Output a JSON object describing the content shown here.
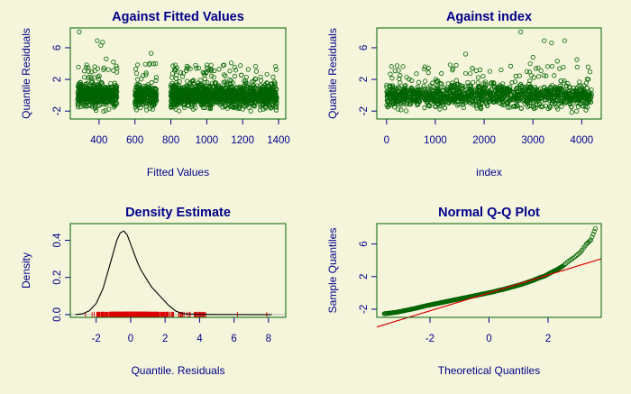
{
  "chart_data": [
    {
      "type": "scatter",
      "title": "Against Fitted Values",
      "xlabel": "Fitted Values",
      "ylabel": "Quantile Residuals",
      "xlim": [
        240,
        1440
      ],
      "ylim": [
        -3,
        8.5
      ],
      "xticks": [
        "400",
        "600",
        "800",
        "1000",
        "1200",
        "1400"
      ],
      "yticks": [
        "-2",
        "2",
        "6"
      ],
      "point_color": "#006400",
      "clusters": [
        [
          280,
          500
        ],
        [
          600,
          720
        ],
        [
          800,
          1280
        ],
        [
          1290,
          1390
        ]
      ],
      "outliers": [
        {
          "x": 290,
          "y": 8.0
        },
        {
          "x": 390,
          "y": 6.9
        },
        {
          "x": 410,
          "y": 6.3
        },
        {
          "x": 420,
          "y": 6.7
        },
        {
          "x": 690,
          "y": 5.3
        },
        {
          "x": 440,
          "y": 4.6
        },
        {
          "x": 480,
          "y": 4.2
        }
      ]
    },
    {
      "type": "scatter",
      "title": "Against  index",
      "xlabel": "index",
      "ylabel": "Quantile Residuals",
      "xlim": [
        -200,
        4400
      ],
      "ylim": [
        -3,
        8.5
      ],
      "xticks": [
        "0",
        "1000",
        "2000",
        "3000",
        "4000"
      ],
      "yticks": [
        "-2",
        "2",
        "6"
      ],
      "point_color": "#006400",
      "n_points": 4200,
      "outliers": [
        {
          "x": 2750,
          "y": 8.0
        },
        {
          "x": 3230,
          "y": 6.9
        },
        {
          "x": 3380,
          "y": 6.6
        },
        {
          "x": 3650,
          "y": 6.9
        },
        {
          "x": 1620,
          "y": 5.2
        },
        {
          "x": 3000,
          "y": 4.8
        },
        {
          "x": 3900,
          "y": 4.5
        },
        {
          "x": 3500,
          "y": 4.3
        }
      ]
    },
    {
      "type": "line",
      "title": "Density Estimate",
      "xlabel": "Quantile. Residuals",
      "ylabel": "Density",
      "xlim": [
        -3.5,
        9
      ],
      "ylim": [
        -0.015,
        0.49
      ],
      "xticks": [
        "-2",
        "0",
        "2",
        "4",
        "6",
        "8"
      ],
      "yticks": [
        "0.0",
        "0.2",
        "0.4"
      ],
      "line_color": "#000000",
      "rug_color": "#dd0000",
      "density": {
        "x": [
          -3.2,
          -2.8,
          -2.4,
          -2.0,
          -1.6,
          -1.2,
          -0.8,
          -0.6,
          -0.4,
          -0.2,
          0.0,
          0.2,
          0.4,
          0.6,
          0.8,
          1.0,
          1.2,
          1.4,
          1.6,
          1.8,
          2.0,
          2.2,
          2.4,
          2.6,
          2.8,
          3.0,
          3.4,
          3.8,
          4.4,
          5.0,
          6.0,
          7.0,
          8.2
        ],
        "y": [
          0.0,
          0.004,
          0.02,
          0.06,
          0.14,
          0.27,
          0.4,
          0.44,
          0.45,
          0.43,
          0.38,
          0.33,
          0.28,
          0.24,
          0.21,
          0.18,
          0.15,
          0.13,
          0.11,
          0.09,
          0.07,
          0.05,
          0.035,
          0.02,
          0.012,
          0.006,
          0.003,
          0.002,
          0.001,
          0.0006,
          0.0003,
          0.0002,
          0.0
        ]
      },
      "rug_range": [
        -3.5,
        8.0
      ]
    },
    {
      "type": "scatter",
      "title": "Normal Q-Q Plot",
      "xlabel": "Theoretical Quantiles",
      "ylabel": "Sample Quantiles",
      "xlim": [
        -3.8,
        3.8
      ],
      "ylim": [
        -3,
        8.5
      ],
      "xticks": [
        "-2",
        "0",
        "2"
      ],
      "yticks": [
        "-2",
        "2",
        "6"
      ],
      "point_color": "#006400",
      "line_color": "#dd0000",
      "qq_line": {
        "intercept": 0.0,
        "slope": 1.1
      },
      "qq_points": [
        [
          -3.55,
          -2.55
        ],
        [
          -3.3,
          -2.45
        ],
        [
          -3.1,
          -2.35
        ],
        [
          -2.9,
          -2.2
        ],
        [
          -2.7,
          -2.05
        ],
        [
          -2.5,
          -1.9
        ],
        [
          -2.3,
          -1.72
        ],
        [
          -2.1,
          -1.55
        ],
        [
          -1.9,
          -1.4
        ],
        [
          -1.7,
          -1.25
        ],
        [
          -1.5,
          -1.1
        ],
        [
          -1.3,
          -0.95
        ],
        [
          -1.1,
          -0.8
        ],
        [
          -0.9,
          -0.65
        ],
        [
          -0.7,
          -0.5
        ],
        [
          -0.5,
          -0.35
        ],
        [
          -0.3,
          -0.2
        ],
        [
          -0.1,
          -0.05
        ],
        [
          0.1,
          0.1
        ],
        [
          0.3,
          0.28
        ],
        [
          0.5,
          0.45
        ],
        [
          0.7,
          0.65
        ],
        [
          0.9,
          0.85
        ],
        [
          1.1,
          1.05
        ],
        [
          1.3,
          1.3
        ],
        [
          1.5,
          1.55
        ],
        [
          1.7,
          1.85
        ],
        [
          1.9,
          2.1
        ],
        [
          2.1,
          2.5
        ],
        [
          2.3,
          2.85
        ],
        [
          2.5,
          3.3
        ],
        [
          2.7,
          3.9
        ],
        [
          2.9,
          4.4
        ],
        [
          3.1,
          5.0
        ],
        [
          3.3,
          6.0
        ],
        [
          3.45,
          6.5
        ],
        [
          3.6,
          7.9
        ]
      ]
    }
  ]
}
